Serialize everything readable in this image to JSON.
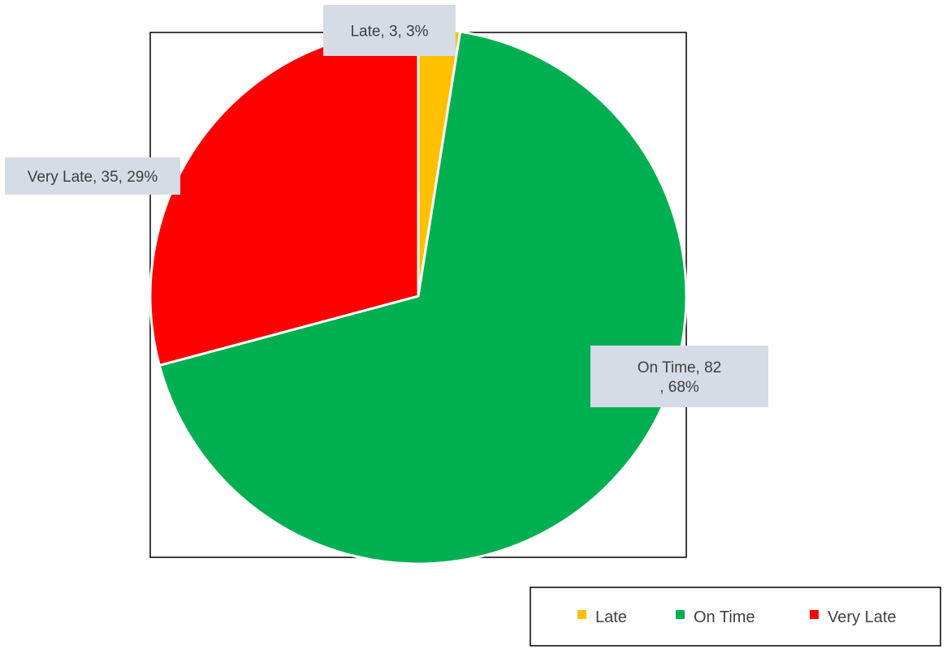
{
  "chart_data": {
    "type": "pie",
    "title": "",
    "categories": [
      "Late",
      "On Time",
      "Very Late"
    ],
    "values": [
      3,
      82,
      35
    ],
    "percentages": [
      "3%",
      "68%",
      "29%"
    ],
    "colors": [
      "#ffc000",
      "#00b050",
      "#ff0000"
    ],
    "data_labels": [
      {
        "lines": [
          "Late, 3, 3%"
        ]
      },
      {
        "lines": [
          "On Time, 82",
          ", 68%"
        ]
      },
      {
        "lines": [
          "Very Late, 35, 29%"
        ]
      }
    ],
    "legend": {
      "position": "bottom-right",
      "entries": [
        "Late",
        "On Time",
        "Very Late"
      ]
    },
    "data_label_background": "#d6dce5",
    "border_color": "#000000"
  }
}
